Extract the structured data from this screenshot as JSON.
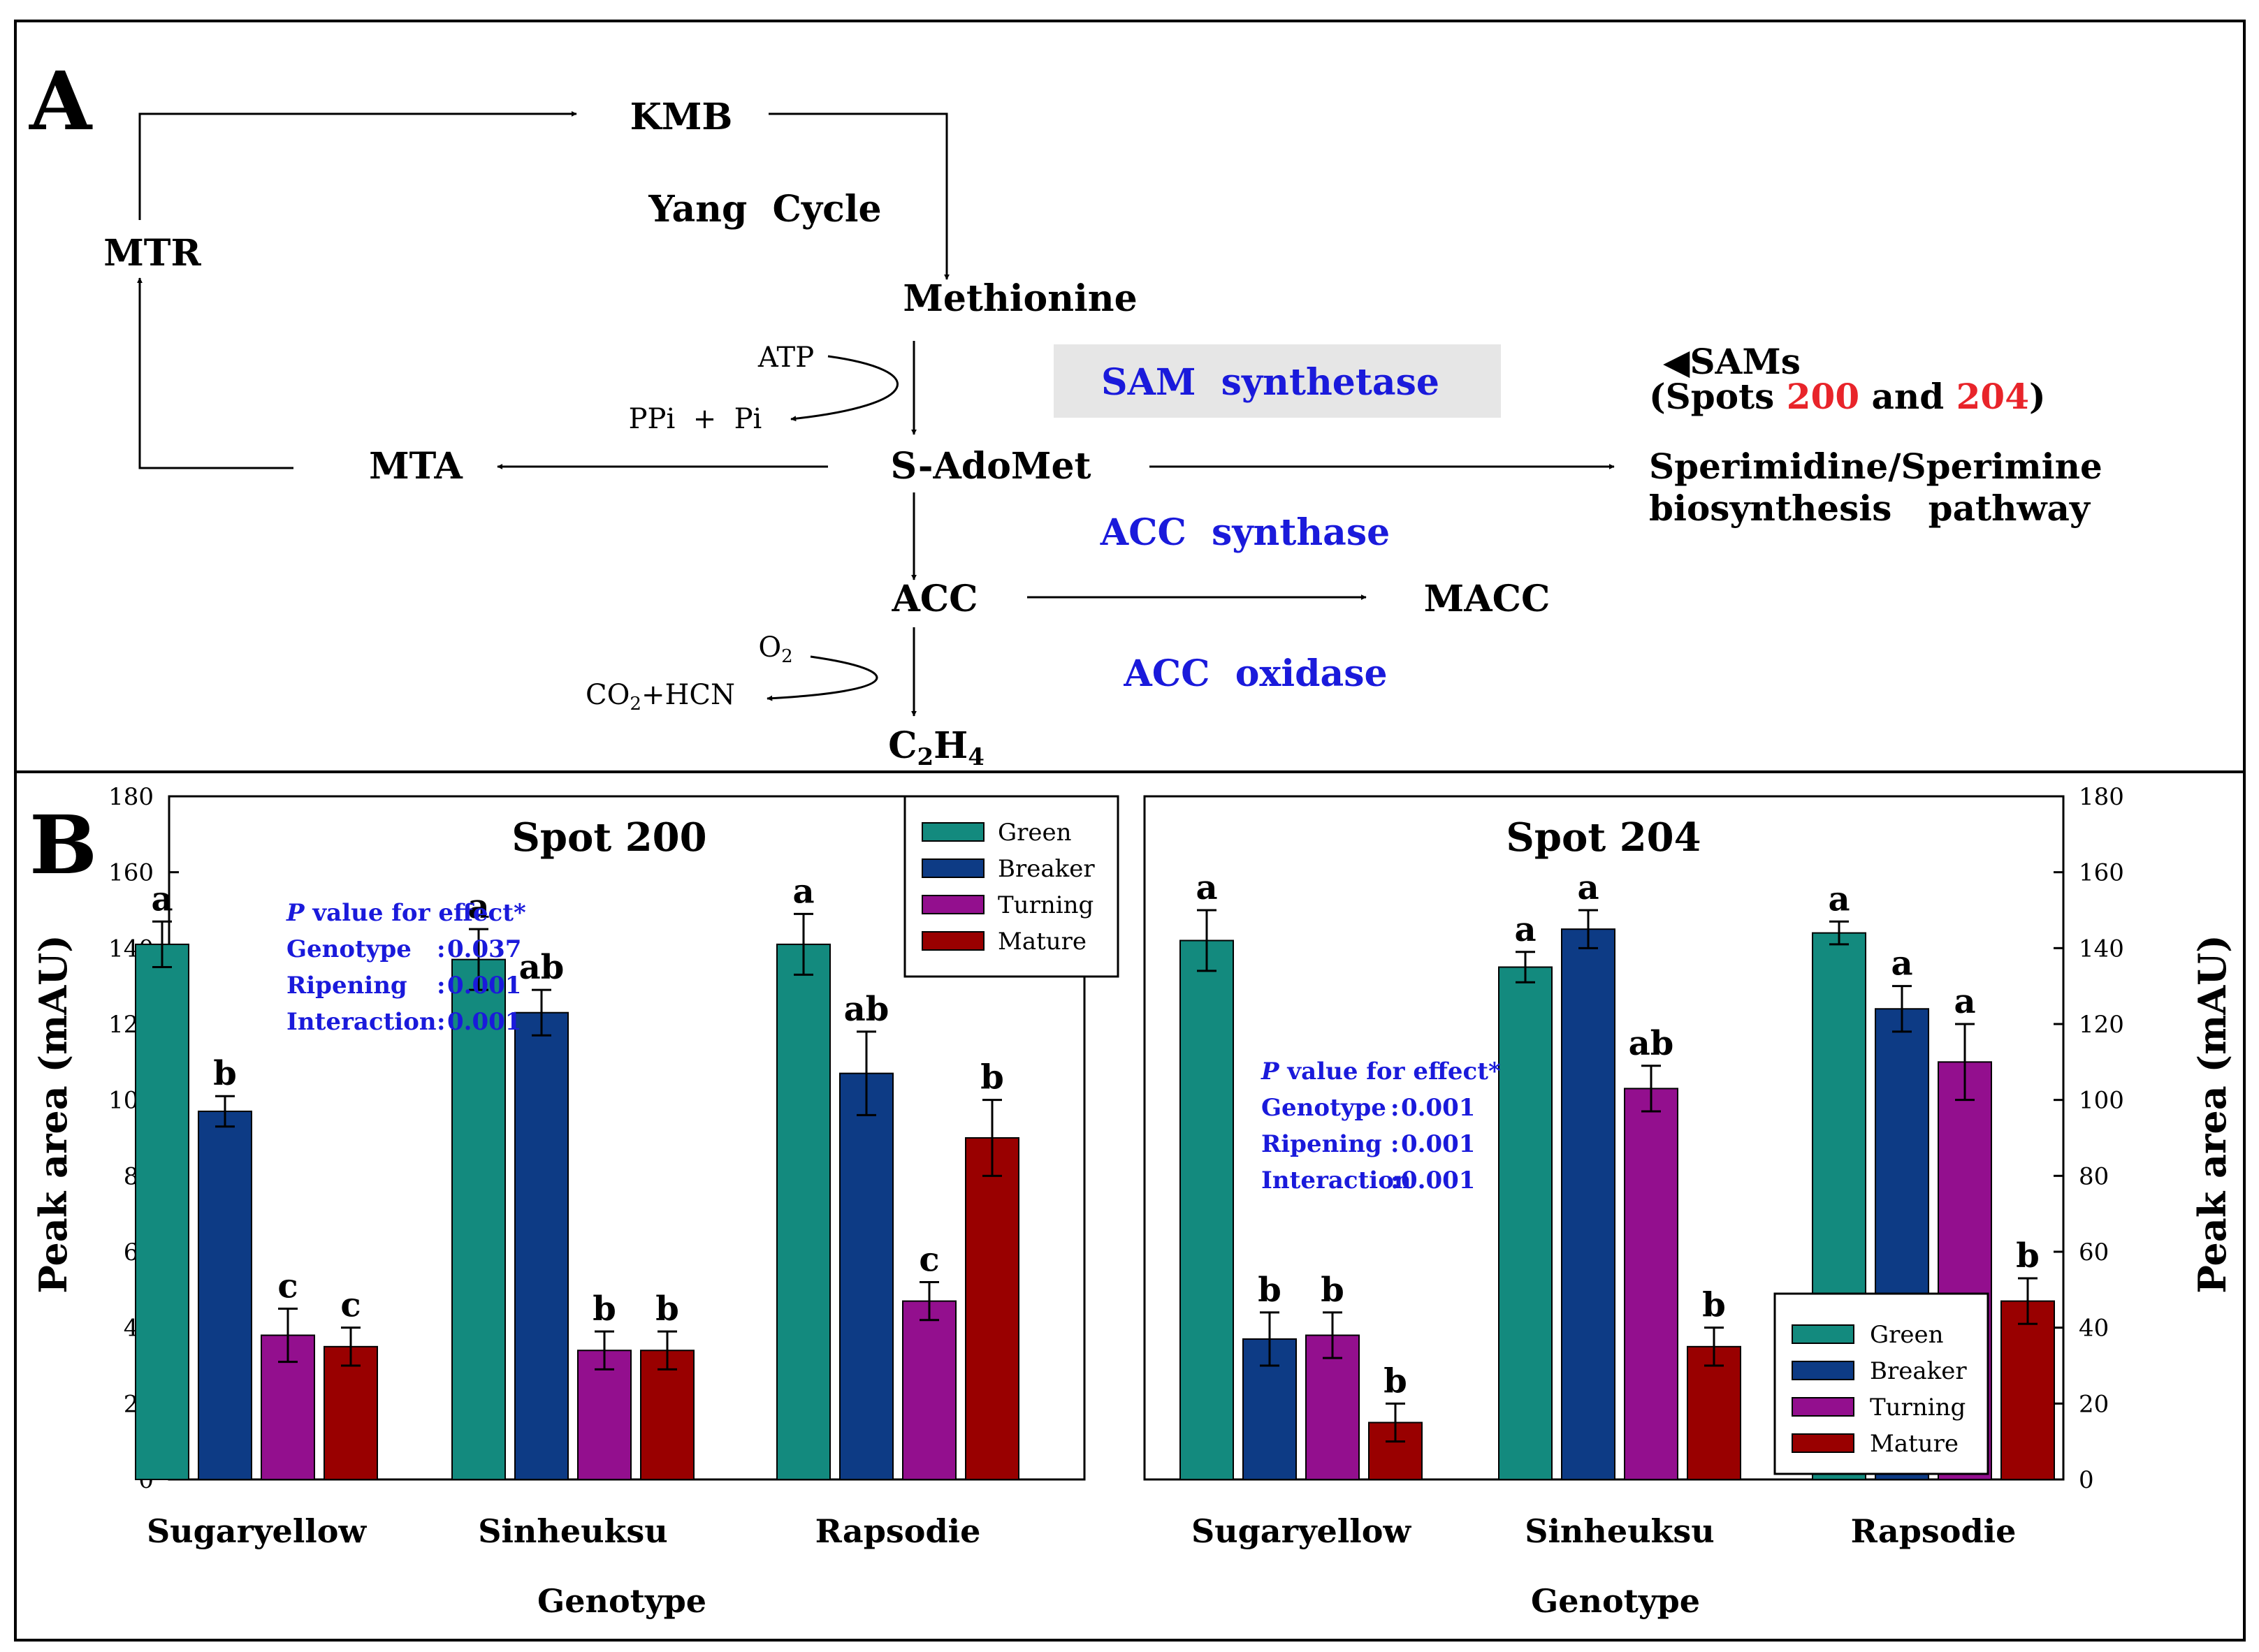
{
  "panel_a": {
    "label": "A",
    "cycle_label": "Yang  Cycle",
    "nodes": {
      "kmb": "KMB",
      "mtr": "MTR",
      "methionine": "Methionine",
      "mta": "MTA",
      "s_adomet": "S-AdoMet",
      "acc": "ACC",
      "macc": "MACC",
      "c2h4_main": "C",
      "c2h4_sub1": "2",
      "c2h4_mid": "H",
      "c2h4_sub2": "4"
    },
    "cofactors": {
      "atp": "ATP",
      "ppi_pi": "PPi  +  Pi",
      "o2_main": "O",
      "o2_sub": "2",
      "co2_main": "CO",
      "co2_sub": "2",
      "co2_rest": "+HCN"
    },
    "enzymes": {
      "sam_synthetase": "SAM  synthetase",
      "acc_synthase": "ACC  synthase",
      "acc_oxidase": "ACC  oxidase"
    },
    "note": {
      "marker": "◀",
      "sams": "SAMs",
      "spots_open": "(Spots ",
      "spot1": "200",
      "and": " and ",
      "spot2": "204",
      "close": ")"
    },
    "pathway_line1": "Sperimidine/Sperimine",
    "pathway_line2": "biosynthesis   pathway",
    "colors": {
      "enzyme": "#1a1adb",
      "highlight": "#e8242a",
      "enzyme_box": "#e6e6e6"
    }
  },
  "panel_b": {
    "label": "B",
    "ylabel": "Peak area (mAU)",
    "xlabel": "Genotype",
    "y_ticks": [
      "0",
      "20",
      "40",
      "60",
      "80",
      "100",
      "120",
      "140",
      "160",
      "180"
    ],
    "legend": [
      "Green",
      "Breaker",
      "Turning",
      "Mature"
    ],
    "pvalue": {
      "p": "P",
      "title_rest": " value for effect*",
      "labels": [
        "Genotype",
        "Ripening",
        "Interaction"
      ]
    }
  },
  "chart_data": [
    {
      "type": "bar",
      "title": "Spot 200",
      "xlabel": "Genotype",
      "ylabel": "Peak area (mAU)",
      "ylim": [
        0,
        180
      ],
      "categories": [
        "Sugaryellow",
        "Sinheuksu",
        "Rapsodie"
      ],
      "series": [
        {
          "name": "Green",
          "color": "#138a7e",
          "values": [
            141,
            137,
            141
          ],
          "errors": [
            6,
            8,
            8
          ],
          "letters": [
            "a",
            "a",
            "a"
          ]
        },
        {
          "name": "Breaker",
          "color": "#0d3b85",
          "values": [
            97,
            123,
            107
          ],
          "errors": [
            4,
            6,
            11
          ],
          "letters": [
            "b",
            "ab",
            "ab"
          ]
        },
        {
          "name": "Turning",
          "color": "#930f8e",
          "values": [
            38,
            34,
            47
          ],
          "errors": [
            7,
            5,
            5
          ],
          "letters": [
            "c",
            "b",
            "c"
          ]
        },
        {
          "name": "Mature",
          "color": "#990000",
          "values": [
            35,
            34,
            90
          ],
          "errors": [
            5,
            5,
            10
          ],
          "letters": [
            "c",
            "b",
            "b"
          ]
        }
      ],
      "p_values": {
        "Genotype": "0.037",
        "Ripening": "0.001",
        "Interaction": "0.001"
      },
      "legend_position": "top-right"
    },
    {
      "type": "bar",
      "title": "Spot 204",
      "xlabel": "Genotype",
      "ylabel": "Peak area (mAU)",
      "ylim": [
        0,
        180
      ],
      "categories": [
        "Sugaryellow",
        "Sinheuksu",
        "Rapsodie"
      ],
      "series": [
        {
          "name": "Green",
          "color": "#138a7e",
          "values": [
            142,
            135,
            144
          ],
          "errors": [
            8,
            4,
            3
          ],
          "letters": [
            "a",
            "a",
            "a"
          ]
        },
        {
          "name": "Breaker",
          "color": "#0d3b85",
          "values": [
            37,
            145,
            124
          ],
          "errors": [
            7,
            5,
            6
          ],
          "letters": [
            "b",
            "a",
            "a"
          ]
        },
        {
          "name": "Turning",
          "color": "#930f8e",
          "values": [
            38,
            103,
            110
          ],
          "errors": [
            6,
            6,
            10
          ],
          "letters": [
            "b",
            "ab",
            "a"
          ]
        },
        {
          "name": "Mature",
          "color": "#990000",
          "values": [
            15,
            35,
            47
          ],
          "errors": [
            5,
            5,
            6
          ],
          "letters": [
            "b",
            "b",
            "b"
          ]
        }
      ],
      "p_values": {
        "Genotype": "0.001",
        "Ripening": "0.001",
        "Interaction": "0.001"
      },
      "legend_position": "bottom-right"
    }
  ]
}
